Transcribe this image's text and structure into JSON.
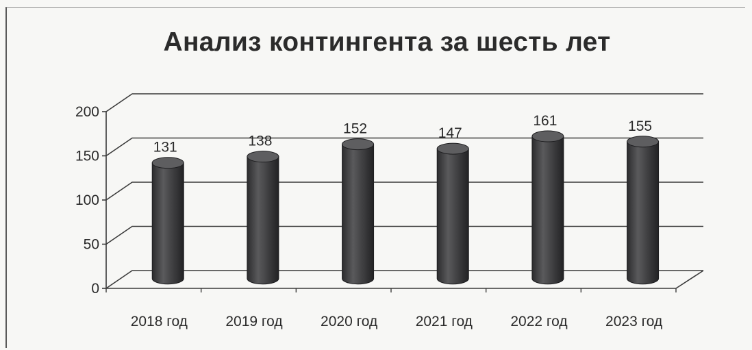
{
  "chart_data": {
    "type": "bar",
    "style": "3d-cylinder",
    "title": "Анализ контингента за шесть лет",
    "xlabel": "",
    "ylabel": "",
    "categories": [
      "2018 год",
      "2019 год",
      "2020 год",
      "2021 год",
      "2022 год",
      "2023 год"
    ],
    "values": [
      131,
      138,
      152,
      147,
      161,
      155
    ],
    "data_labels": [
      "131",
      "138",
      "152",
      "147",
      "161",
      "155"
    ],
    "yticks": [
      0,
      50,
      100,
      150,
      200
    ],
    "ylim": [
      0,
      200
    ],
    "grid": true,
    "legend": "none",
    "colors": {
      "bar": "#3b3b3d",
      "bar_highlight": "#5a5a5c",
      "grid": "#3a3a3a",
      "text": "#2a2a2a"
    }
  }
}
